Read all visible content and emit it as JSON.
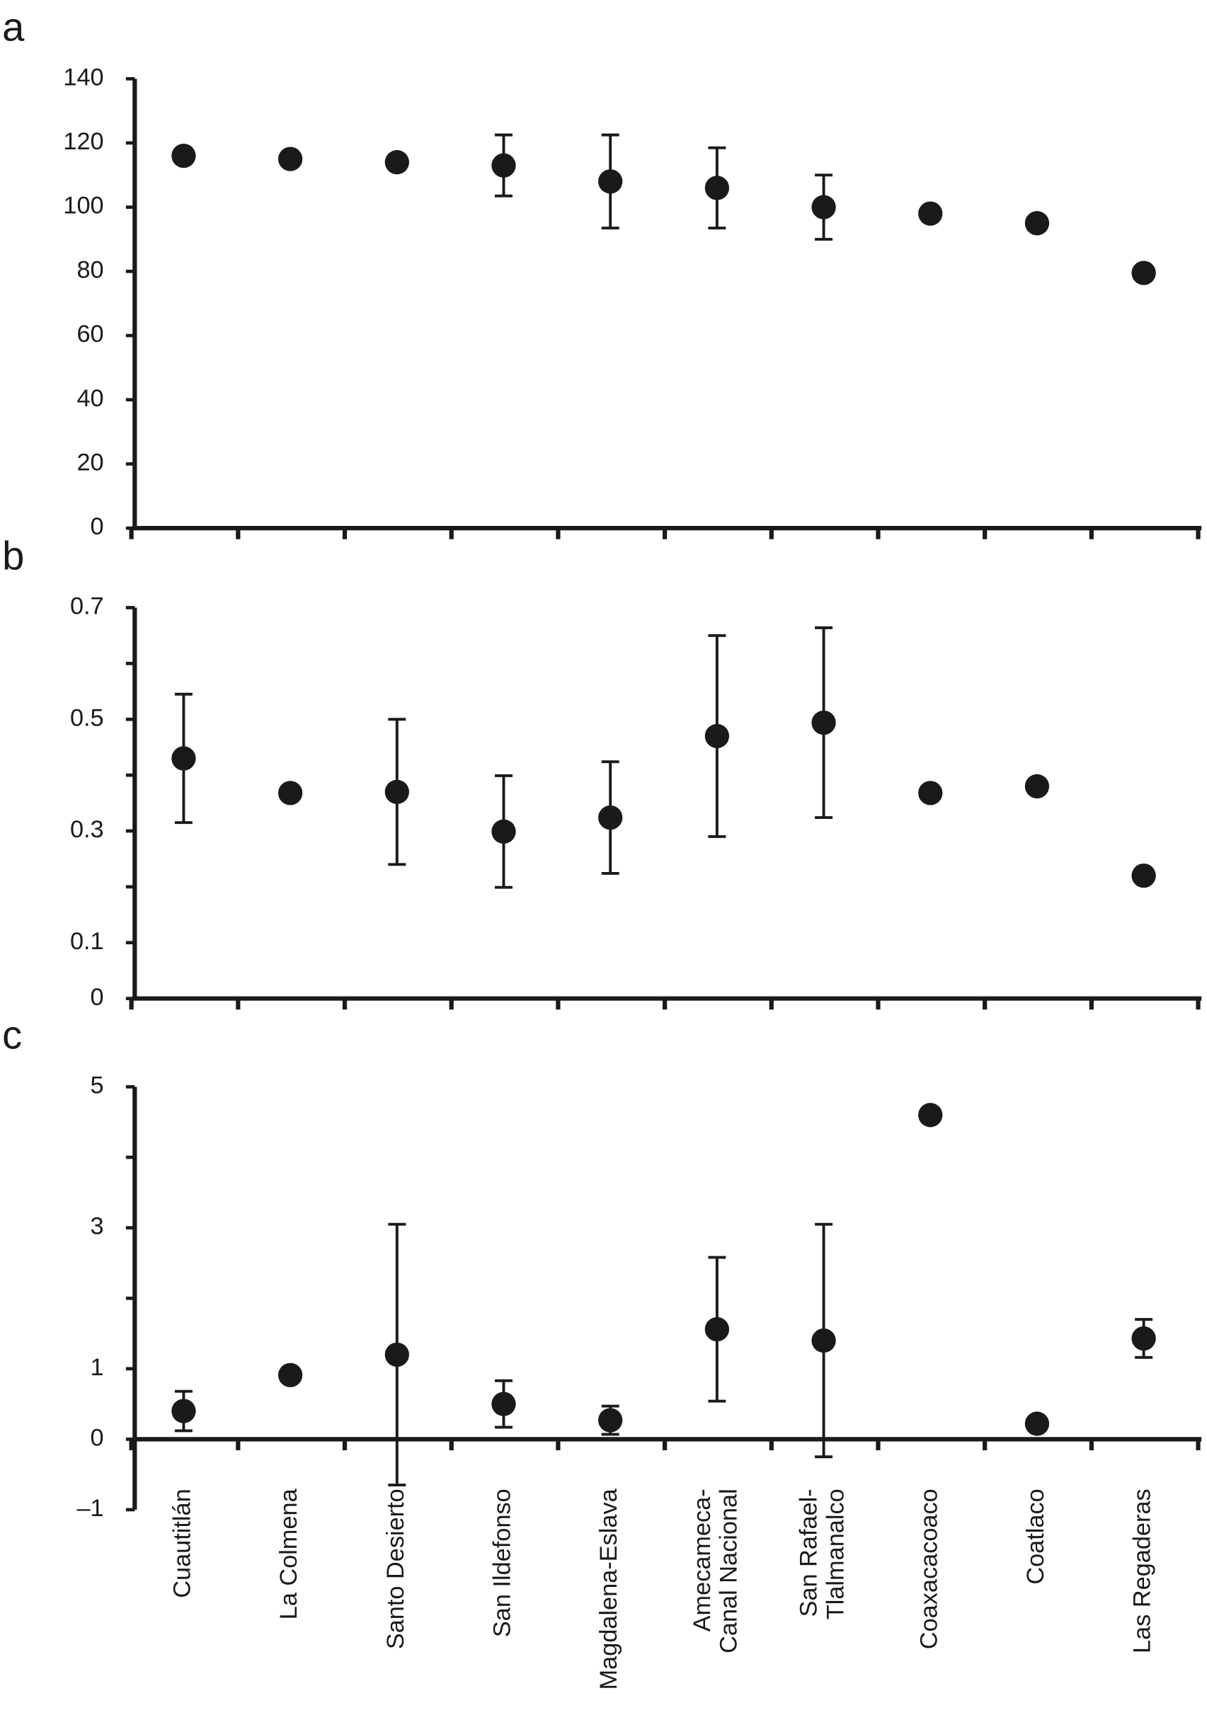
{
  "chart_data": [
    {
      "type": "scatter",
      "panel_label": "a",
      "ylim": [
        0,
        140
      ],
      "yticks": [
        0,
        20,
        40,
        60,
        80,
        100,
        120,
        140
      ],
      "color": "#1a1a1a",
      "values": [
        116,
        115,
        114,
        113,
        108,
        106,
        100,
        98,
        95,
        79.5
      ],
      "errors": [
        null,
        null,
        null,
        9.5,
        14.5,
        12.5,
        10,
        null,
        null,
        null
      ]
    },
    {
      "type": "scatter",
      "panel_label": "b",
      "ylim": [
        0,
        0.7
      ],
      "yticks": [
        0,
        0.1,
        0.3,
        0.5,
        0.7
      ],
      "minor_yticks": [
        0.2,
        0.4,
        0.6
      ],
      "color": "#1a1a1a",
      "values": [
        0.43,
        0.368,
        0.37,
        0.299,
        0.324,
        0.47,
        0.494,
        0.368,
        0.38,
        0.22
      ],
      "errors": [
        0.115,
        null,
        0.13,
        0.1,
        0.1,
        0.18,
        0.17,
        null,
        null,
        null
      ]
    },
    {
      "type": "scatter",
      "panel_label": "c",
      "ylim": [
        -1,
        5
      ],
      "yticks": [
        {
          "value": -1,
          "label": "–1"
        },
        0,
        1,
        3,
        5
      ],
      "minor_yticks": [
        2,
        4
      ],
      "color": "#1a1a1a",
      "categories": [
        "Cuautitlán",
        "La Colmena",
        "Santo Desierto",
        "San Ildefonso",
        "Magdalena-Eslava",
        "Amecameca-\nCanal Nacional",
        "San Rafael-\nTlalmanalco",
        "Coaxacacoaco",
        "Coatlaco",
        "Las Regaderas"
      ],
      "values": [
        0.4,
        0.91,
        1.2,
        0.5,
        0.27,
        1.56,
        1.4,
        4.6,
        0.22,
        1.43
      ],
      "errors": [
        0.28,
        null,
        1.85,
        0.33,
        0.2,
        1.02,
        1.65,
        null,
        null,
        0.27
      ]
    }
  ]
}
